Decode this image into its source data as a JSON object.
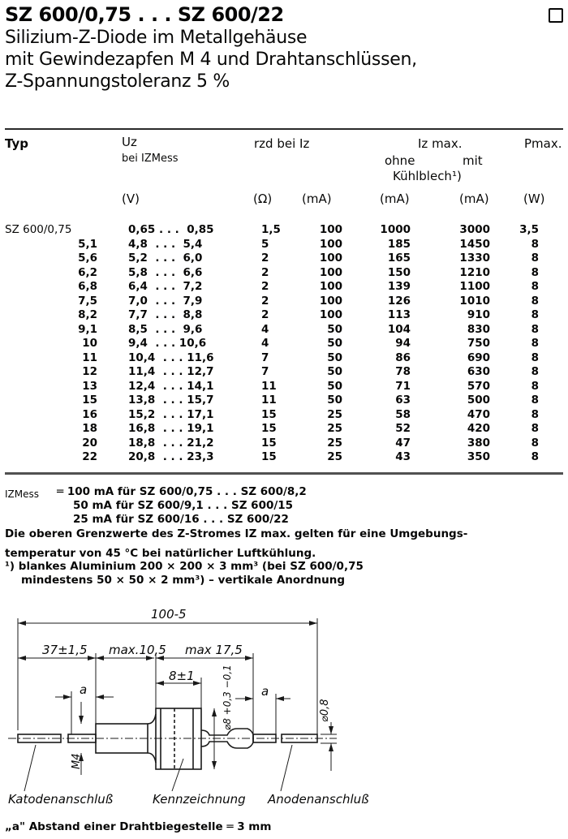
{
  "header": {
    "title": "SZ 600/0,75 . . . SZ 600/22",
    "subtitle_lines": [
      "Silizium-Z-Diode im Metallgehäuse",
      "mit Gewindezapfen M 4 und Drahtanschlüssen,",
      "Z-Spannungstoleranz 5 %"
    ]
  },
  "table": {
    "headers": {
      "typ": "Typ",
      "uz": "Uz",
      "uz_sub": "bei IZMess",
      "rzd": "rzd bei Iz",
      "iz_max": "Iz max.",
      "ohne": "ohne",
      "mit": "mit",
      "kuehlblech": "Kühlblech¹)",
      "pmax": "Pmax."
    },
    "units": {
      "uz": "(V)",
      "rzd": "(Ω)",
      "iz": "(mA)",
      "ohne": "(mA)",
      "mit": "(mA)",
      "p": "(W)"
    },
    "rows": [
      {
        "typ": "SZ 600/0,75",
        "uz": "0,65 . . .  0,85",
        "rzd": "1,5",
        "iz": "100",
        "ohne": "1000",
        "mit": "3000",
        "p": "3,5"
      },
      {
        "typ": "5,1",
        "uz": "4,8  . . .  5,4",
        "rzd": "5",
        "iz": "100",
        "ohne": "185",
        "mit": "1450",
        "p": "8"
      },
      {
        "typ": "5,6",
        "uz": "5,2  . . .  6,0",
        "rzd": "2",
        "iz": "100",
        "ohne": "165",
        "mit": "1330",
        "p": "8"
      },
      {
        "typ": "6,2",
        "uz": "5,8  . . .  6,6",
        "rzd": "2",
        "iz": "100",
        "ohne": "150",
        "mit": "1210",
        "p": "8"
      },
      {
        "typ": "6,8",
        "uz": "6,4  . . .  7,2",
        "rzd": "2",
        "iz": "100",
        "ohne": "139",
        "mit": "1100",
        "p": "8"
      },
      {
        "typ": "7,5",
        "uz": "7,0  . . .  7,9",
        "rzd": "2",
        "iz": "100",
        "ohne": "126",
        "mit": "1010",
        "p": "8"
      },
      {
        "typ": "8,2",
        "uz": "7,7  . . .  8,8",
        "rzd": "2",
        "iz": "100",
        "ohne": "113",
        "mit": "910",
        "p": "8"
      },
      {
        "typ": "9,1",
        "uz": "8,5  . . .  9,6",
        "rzd": "4",
        "iz": "50",
        "ohne": "104",
        "mit": "830",
        "p": "8"
      },
      {
        "typ": "10",
        "uz": "9,4  . . . 10,6",
        "rzd": "4",
        "iz": "50",
        "ohne": "94",
        "mit": "750",
        "p": "8"
      },
      {
        "typ": "11",
        "uz": "10,4  . . . 11,6",
        "rzd": "7",
        "iz": "50",
        "ohne": "86",
        "mit": "690",
        "p": "8"
      },
      {
        "typ": "12",
        "uz": "11,4  . . . 12,7",
        "rzd": "7",
        "iz": "50",
        "ohne": "78",
        "mit": "630",
        "p": "8"
      },
      {
        "typ": "13",
        "uz": "12,4  . . . 14,1",
        "rzd": "11",
        "iz": "50",
        "ohne": "71",
        "mit": "570",
        "p": "8"
      },
      {
        "typ": "15",
        "uz": "13,8  . . . 15,7",
        "rzd": "11",
        "iz": "50",
        "ohne": "63",
        "mit": "500",
        "p": "8"
      },
      {
        "typ": "16",
        "uz": "15,2  . . . 17,1",
        "rzd": "15",
        "iz": "25",
        "ohne": "58",
        "mit": "470",
        "p": "8"
      },
      {
        "typ": "18",
        "uz": "16,8  . . . 19,1",
        "rzd": "15",
        "iz": "25",
        "ohne": "52",
        "mit": "420",
        "p": "8"
      },
      {
        "typ": "20",
        "uz": "18,8  . . . 21,2",
        "rzd": "15",
        "iz": "25",
        "ohne": "47",
        "mit": "380",
        "p": "8"
      },
      {
        "typ": "22",
        "uz": "20,8  . . . 23,3",
        "rzd": "15",
        "iz": "25",
        "ohne": "43",
        "mit": "350",
        "p": "8"
      }
    ]
  },
  "notes": {
    "izmess_label": "IZMess",
    "izmess_lines": [
      "═ 100 mA für SZ 600/0,75 . . . SZ 600/8,2",
      "50 mA für SZ 600/9,1   . . . SZ 600/15",
      "25 mA für SZ 600/16    . . . SZ 600/22"
    ],
    "limit_line1": "Die oberen Grenzwerte des Z-Stromes IZ  max. gelten für eine Umgebungs-",
    "limit_line2": "temperatur von 45 °C bei natürlicher Luftkühlung.",
    "footnote1": "¹)  blankes Aluminium 200 × 200 × 3 mm³ (bei SZ 600/0,75",
    "footnote2": "mindestens 50 × 50 × 2 mm³) – vertikale Anordnung"
  },
  "drawing": {
    "total_length": "100-5",
    "dim_cathode": "37±1,5",
    "dim_thread": "max.10,5",
    "dim_body": "max 17,5",
    "dim_hex": "8±1",
    "dim_a": "a",
    "dim_diameter": "⌀8 +0,3 −0,1",
    "dim_wire": "⌀0,8",
    "dim_thread_size": "M4",
    "label_cathode": "Katodenanschluß",
    "label_marking": "Kennzeichnung",
    "label_anode": "Anodenanschluß",
    "bottom_note": "„a\" Abstand einer Drahtbiegestelle ═ 3 mm"
  }
}
